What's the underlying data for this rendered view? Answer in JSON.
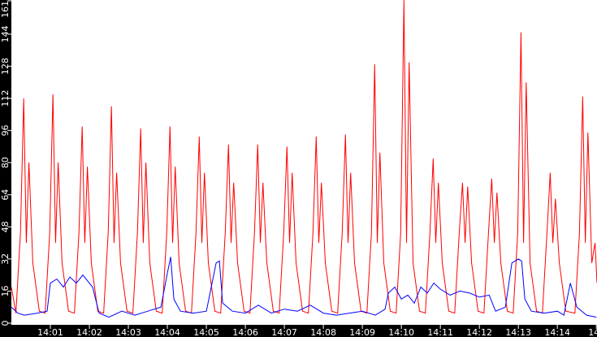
{
  "chart_data": {
    "type": "line",
    "title": "",
    "xlabel": "",
    "ylabel": "",
    "ylim": [
      0,
      161
    ],
    "xlim": [
      "14:00:00",
      "14:15:01"
    ],
    "grid": false,
    "y_ticks": [
      "0",
      "16",
      "32",
      "48",
      "64",
      "80",
      "96",
      "112",
      "128",
      "144",
      "161"
    ],
    "x_ticks": [
      "14:01",
      "14:02",
      "14:03",
      "14:04",
      "14:05",
      "14:06",
      "14:07",
      "14:08",
      "14:09",
      "14:10",
      "14:11",
      "14:12",
      "14:13",
      "14:14",
      "14"
    ],
    "colors": {
      "background": "#000000",
      "plot": "#ffffff",
      "red": "#ff0000",
      "blue": "#0000ff"
    },
    "series": [
      {
        "color": "#ff0000",
        "points": [
          [
            "14:00:00",
            18
          ],
          [
            "14:00:07",
            5
          ],
          [
            "14:00:14",
            45
          ],
          [
            "14:00:19",
            112
          ],
          [
            "14:00:23",
            40
          ],
          [
            "14:00:27",
            80
          ],
          [
            "14:00:33",
            30
          ],
          [
            "14:00:43",
            6
          ],
          [
            "14:00:52",
            5
          ],
          [
            "14:00:59",
            45
          ],
          [
            "14:01:04",
            114
          ],
          [
            "14:01:08",
            40
          ],
          [
            "14:01:12",
            80
          ],
          [
            "14:01:18",
            30
          ],
          [
            "14:01:28",
            6
          ],
          [
            "14:01:37",
            5
          ],
          [
            "14:01:44",
            45
          ],
          [
            "14:01:49",
            98
          ],
          [
            "14:01:53",
            40
          ],
          [
            "14:01:57",
            78
          ],
          [
            "14:02:03",
            30
          ],
          [
            "14:02:13",
            6
          ],
          [
            "14:02:22",
            5
          ],
          [
            "14:02:29",
            45
          ],
          [
            "14:02:34",
            108
          ],
          [
            "14:02:38",
            40
          ],
          [
            "14:02:42",
            75
          ],
          [
            "14:02:48",
            30
          ],
          [
            "14:02:58",
            6
          ],
          [
            "14:03:07",
            5
          ],
          [
            "14:03:14",
            45
          ],
          [
            "14:03:19",
            97
          ],
          [
            "14:03:23",
            40
          ],
          [
            "14:03:27",
            80
          ],
          [
            "14:03:33",
            30
          ],
          [
            "14:03:43",
            6
          ],
          [
            "14:03:52",
            5
          ],
          [
            "14:03:59",
            45
          ],
          [
            "14:04:04",
            98
          ],
          [
            "14:04:08",
            40
          ],
          [
            "14:04:12",
            78
          ],
          [
            "14:04:18",
            30
          ],
          [
            "14:04:28",
            6
          ],
          [
            "14:04:37",
            5
          ],
          [
            "14:04:44",
            45
          ],
          [
            "14:04:49",
            93
          ],
          [
            "14:04:53",
            40
          ],
          [
            "14:04:57",
            75
          ],
          [
            "14:05:03",
            30
          ],
          [
            "14:05:13",
            6
          ],
          [
            "14:05:22",
            5
          ],
          [
            "14:05:29",
            45
          ],
          [
            "14:05:34",
            89
          ],
          [
            "14:05:38",
            40
          ],
          [
            "14:05:42",
            70
          ],
          [
            "14:05:48",
            30
          ],
          [
            "14:05:58",
            6
          ],
          [
            "14:06:07",
            5
          ],
          [
            "14:06:14",
            45
          ],
          [
            "14:06:19",
            89
          ],
          [
            "14:06:23",
            40
          ],
          [
            "14:06:27",
            70
          ],
          [
            "14:06:33",
            30
          ],
          [
            "14:06:43",
            6
          ],
          [
            "14:06:52",
            5
          ],
          [
            "14:06:59",
            45
          ],
          [
            "14:07:04",
            88
          ],
          [
            "14:07:08",
            40
          ],
          [
            "14:07:12",
            75
          ],
          [
            "14:07:18",
            30
          ],
          [
            "14:07:28",
            6
          ],
          [
            "14:07:37",
            5
          ],
          [
            "14:07:44",
            45
          ],
          [
            "14:07:49",
            93
          ],
          [
            "14:07:53",
            40
          ],
          [
            "14:07:57",
            70
          ],
          [
            "14:08:03",
            30
          ],
          [
            "14:08:13",
            6
          ],
          [
            "14:08:22",
            5
          ],
          [
            "14:08:29",
            45
          ],
          [
            "14:08:34",
            94
          ],
          [
            "14:08:38",
            40
          ],
          [
            "14:08:42",
            75
          ],
          [
            "14:08:48",
            30
          ],
          [
            "14:08:58",
            6
          ],
          [
            "14:09:07",
            5
          ],
          [
            "14:09:14",
            45
          ],
          [
            "14:09:19",
            129
          ],
          [
            "14:09:23",
            40
          ],
          [
            "14:09:27",
            85
          ],
          [
            "14:09:33",
            30
          ],
          [
            "14:09:43",
            6
          ],
          [
            "14:09:52",
            5
          ],
          [
            "14:09:59",
            45
          ],
          [
            "14:10:04",
            162
          ],
          [
            "14:10:08",
            40
          ],
          [
            "14:10:12",
            130
          ],
          [
            "14:10:18",
            30
          ],
          [
            "14:10:28",
            6
          ],
          [
            "14:10:37",
            5
          ],
          [
            "14:10:44",
            45
          ],
          [
            "14:10:49",
            82
          ],
          [
            "14:10:53",
            40
          ],
          [
            "14:10:57",
            70
          ],
          [
            "14:11:03",
            30
          ],
          [
            "14:11:13",
            6
          ],
          [
            "14:11:22",
            5
          ],
          [
            "14:11:29",
            45
          ],
          [
            "14:11:34",
            70
          ],
          [
            "14:11:38",
            40
          ],
          [
            "14:11:42",
            68
          ],
          [
            "14:11:48",
            30
          ],
          [
            "14:11:58",
            6
          ],
          [
            "14:12:07",
            5
          ],
          [
            "14:12:14",
            45
          ],
          [
            "14:12:19",
            72
          ],
          [
            "14:12:23",
            40
          ],
          [
            "14:12:27",
            65
          ],
          [
            "14:12:33",
            30
          ],
          [
            "14:12:43",
            6
          ],
          [
            "14:12:52",
            5
          ],
          [
            "14:12:59",
            45
          ],
          [
            "14:13:04",
            145
          ],
          [
            "14:13:08",
            40
          ],
          [
            "14:13:12",
            120
          ],
          [
            "14:13:18",
            30
          ],
          [
            "14:13:28",
            6
          ],
          [
            "14:13:37",
            5
          ],
          [
            "14:13:44",
            45
          ],
          [
            "14:13:49",
            75
          ],
          [
            "14:13:53",
            40
          ],
          [
            "14:13:57",
            62
          ],
          [
            "14:14:03",
            30
          ],
          [
            "14:14:13",
            6
          ],
          [
            "14:14:27",
            5
          ],
          [
            "14:14:34",
            45
          ],
          [
            "14:14:39",
            113
          ],
          [
            "14:14:43",
            40
          ],
          [
            "14:14:47",
            95
          ],
          [
            "14:14:53",
            30
          ],
          [
            "14:14:58",
            40
          ],
          [
            "14:15:01",
            20
          ]
        ]
      },
      {
        "color": "#0000ff",
        "points": [
          [
            "14:00:00",
            8
          ],
          [
            "14:00:10",
            5
          ],
          [
            "14:00:20",
            4
          ],
          [
            "14:00:40",
            5
          ],
          [
            "14:00:55",
            6
          ],
          [
            "14:01:00",
            20
          ],
          [
            "14:01:10",
            22
          ],
          [
            "14:01:20",
            18
          ],
          [
            "14:01:30",
            23
          ],
          [
            "14:01:40",
            20
          ],
          [
            "14:01:50",
            24
          ],
          [
            "14:02:00",
            20
          ],
          [
            "14:02:05",
            18
          ],
          [
            "14:02:15",
            5
          ],
          [
            "14:02:30",
            3
          ],
          [
            "14:02:50",
            6
          ],
          [
            "14:03:10",
            4
          ],
          [
            "14:03:30",
            6
          ],
          [
            "14:03:50",
            8
          ],
          [
            "14:04:00",
            25
          ],
          [
            "14:04:05",
            33
          ],
          [
            "14:04:10",
            12
          ],
          [
            "14:04:20",
            6
          ],
          [
            "14:04:40",
            5
          ],
          [
            "14:05:00",
            6
          ],
          [
            "14:05:15",
            30
          ],
          [
            "14:05:20",
            31
          ],
          [
            "14:05:25",
            10
          ],
          [
            "14:05:40",
            6
          ],
          [
            "14:06:00",
            5
          ],
          [
            "14:06:20",
            9
          ],
          [
            "14:06:40",
            5
          ],
          [
            "14:07:00",
            7
          ],
          [
            "14:07:20",
            6
          ],
          [
            "14:07:40",
            9
          ],
          [
            "14:08:00",
            5
          ],
          [
            "14:08:20",
            4
          ],
          [
            "14:08:40",
            5
          ],
          [
            "14:09:00",
            6
          ],
          [
            "14:09:20",
            4
          ],
          [
            "14:09:35",
            7
          ],
          [
            "14:09:40",
            15
          ],
          [
            "14:09:50",
            18
          ],
          [
            "14:10:00",
            12
          ],
          [
            "14:10:10",
            14
          ],
          [
            "14:10:20",
            10
          ],
          [
            "14:10:30",
            18
          ],
          [
            "14:10:40",
            15
          ],
          [
            "14:10:50",
            20
          ],
          [
            "14:11:00",
            17
          ],
          [
            "14:11:15",
            14
          ],
          [
            "14:11:30",
            16
          ],
          [
            "14:11:45",
            15
          ],
          [
            "14:12:00",
            13
          ],
          [
            "14:12:15",
            14
          ],
          [
            "14:12:25",
            6
          ],
          [
            "14:12:40",
            8
          ],
          [
            "14:12:50",
            30
          ],
          [
            "14:13:00",
            32
          ],
          [
            "14:13:05",
            31
          ],
          [
            "14:13:10",
            12
          ],
          [
            "14:13:20",
            6
          ],
          [
            "14:13:40",
            5
          ],
          [
            "14:14:00",
            6
          ],
          [
            "14:14:10",
            4
          ],
          [
            "14:14:20",
            20
          ],
          [
            "14:14:30",
            8
          ],
          [
            "14:14:45",
            4
          ],
          [
            "14:15:00",
            3
          ]
        ]
      }
    ]
  }
}
